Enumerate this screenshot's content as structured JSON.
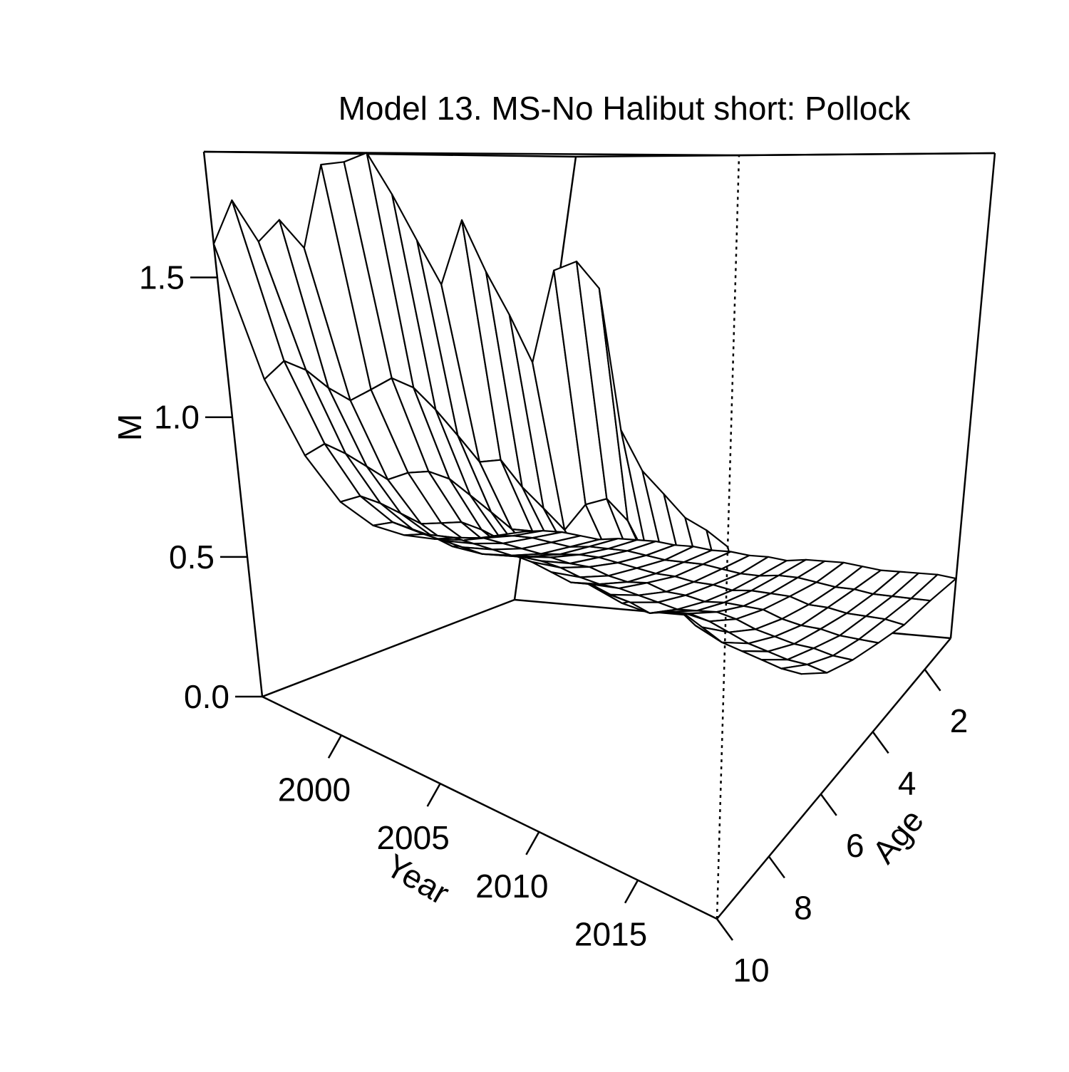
{
  "chart_data": {
    "type": "surface",
    "title": "Model 13. MS-No Halibut short: Pollock",
    "xlabel": "Year",
    "ylabel": "Age",
    "zlabel": "M",
    "x_ticks": [
      "2000",
      "2005",
      "2010",
      "2015"
    ],
    "y_ticks": [
      "2",
      "4",
      "6",
      "8",
      "10"
    ],
    "z_ticks": [
      "0.0",
      "0.5",
      "1.0",
      "1.5"
    ],
    "xlim": [
      1996,
      2019
    ],
    "ylim": [
      1,
      10
    ],
    "zlim": [
      0,
      1.95
    ],
    "grid": false,
    "years": [
      1996,
      1997,
      1998,
      1999,
      2000,
      2001,
      2002,
      2003,
      2004,
      2005,
      2006,
      2007,
      2008,
      2009,
      2010,
      2011,
      2012,
      2013,
      2014,
      2015,
      2016,
      2017,
      2018,
      2019
    ],
    "ages": [
      1,
      2,
      3,
      4,
      5,
      6,
      7,
      8,
      9,
      10
    ],
    "values": [
      [
        1.62,
        1.78,
        1.64,
        1.72,
        1.63,
        1.91,
        1.92,
        1.95,
        1.82,
        1.68,
        1.55,
        1.75,
        1.6,
        1.48,
        1.35,
        1.62,
        1.65,
        1.58,
        1.2,
        1.1,
        1.05,
        1.0,
        0.98,
        0.95
      ],
      [
        1.12,
        1.2,
        1.18,
        1.13,
        1.1,
        1.15,
        1.2,
        1.18,
        1.12,
        1.05,
        0.98,
        1.0,
        0.93,
        0.88,
        0.83,
        0.92,
        0.95,
        0.9,
        0.8,
        0.75,
        0.72,
        0.7,
        0.68,
        0.66
      ],
      [
        0.82,
        0.88,
        0.86,
        0.83,
        0.8,
        0.84,
        0.86,
        0.85,
        0.81,
        0.77,
        0.73,
        0.74,
        0.7,
        0.67,
        0.64,
        0.69,
        0.7,
        0.68,
        0.62,
        0.58,
        0.56,
        0.55,
        0.54,
        0.53
      ],
      [
        0.62,
        0.66,
        0.65,
        0.63,
        0.61,
        0.63,
        0.65,
        0.64,
        0.62,
        0.59,
        0.57,
        0.58,
        0.55,
        0.53,
        0.51,
        0.54,
        0.55,
        0.53,
        0.5,
        0.47,
        0.46,
        0.45,
        0.44,
        0.44
      ],
      [
        0.5,
        0.53,
        0.52,
        0.51,
        0.49,
        0.51,
        0.52,
        0.51,
        0.5,
        0.48,
        0.46,
        0.47,
        0.45,
        0.44,
        0.42,
        0.44,
        0.45,
        0.44,
        0.42,
        0.4,
        0.39,
        0.38,
        0.38,
        0.37
      ],
      [
        0.43,
        0.45,
        0.44,
        0.43,
        0.42,
        0.43,
        0.44,
        0.44,
        0.43,
        0.41,
        0.4,
        0.4,
        0.39,
        0.38,
        0.37,
        0.38,
        0.39,
        0.38,
        0.36,
        0.35,
        0.34,
        0.34,
        0.33,
        0.33
      ],
      [
        0.38,
        0.4,
        0.39,
        0.38,
        0.37,
        0.38,
        0.39,
        0.38,
        0.38,
        0.36,
        0.35,
        0.36,
        0.34,
        0.34,
        0.33,
        0.34,
        0.34,
        0.34,
        0.32,
        0.31,
        0.31,
        0.3,
        0.3,
        0.3
      ],
      [
        0.34,
        0.36,
        0.35,
        0.34,
        0.33,
        0.34,
        0.35,
        0.35,
        0.34,
        0.33,
        0.32,
        0.32,
        0.31,
        0.31,
        0.3,
        0.31,
        0.31,
        0.31,
        0.29,
        0.29,
        0.28,
        0.28,
        0.28,
        0.27
      ],
      [
        0.32,
        0.33,
        0.33,
        0.32,
        0.31,
        0.32,
        0.32,
        0.32,
        0.31,
        0.3,
        0.3,
        0.3,
        0.29,
        0.28,
        0.28,
        0.29,
        0.29,
        0.28,
        0.27,
        0.27,
        0.26,
        0.26,
        0.26,
        0.26
      ],
      [
        0.3,
        0.31,
        0.31,
        0.3,
        0.29,
        0.3,
        0.3,
        0.3,
        0.29,
        0.29,
        0.28,
        0.28,
        0.27,
        0.27,
        0.26,
        0.27,
        0.27,
        0.27,
        0.26,
        0.25,
        0.25,
        0.25,
        0.25,
        0.24
      ]
    ]
  }
}
